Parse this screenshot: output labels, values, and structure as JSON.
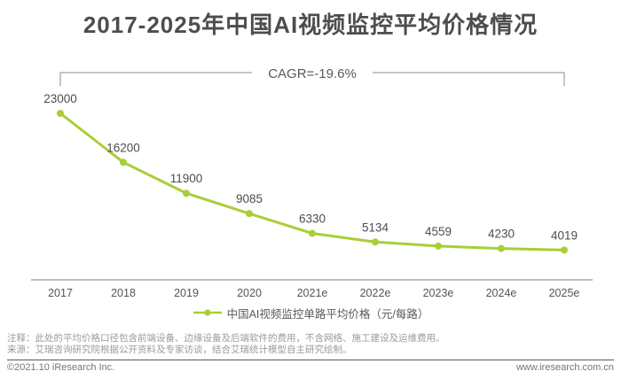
{
  "title": "2017-2025年中国AI视频监控平均价格情况",
  "chart_data": {
    "type": "line",
    "title": "2017-2025年中国AI视频监控平均价格情况",
    "categories": [
      "2017",
      "2018",
      "2019",
      "2020",
      "2021e",
      "2022e",
      "2023e",
      "2024e",
      "2025e"
    ],
    "series": [
      {
        "name": "中国AI视频监控单路平均价格（元/每路）",
        "values": [
          23000,
          16200,
          11900,
          9085,
          6330,
          5134,
          4559,
          4230,
          4019
        ]
      }
    ],
    "data_labels": [
      "23000",
      "16200",
      "11900",
      "9085",
      "6330",
      "5134",
      "4559",
      "4230",
      "4019"
    ],
    "annotation": "CAGR=-19.6%",
    "ylim": [
      0,
      23000
    ],
    "grid": false,
    "legend_position": "bottom",
    "xlabel": "",
    "ylabel": ""
  },
  "legend": {
    "label": "中国AI视频监控单路平均价格（元/每路）"
  },
  "notes": {
    "note1": "注释：此处的平均价格口径包含前端设备、边缘设备及后端软件的费用，不含网络、施工建设及运维费用。",
    "note2": "来源：艾瑞咨询研究院根据公开资料及专家访谈，结合艾瑞统计模型自主研究绘制。"
  },
  "footer": {
    "copyright": "©2021.10 iResearch Inc.",
    "website": "www.iresearch.com.cn"
  },
  "colors": {
    "line_green": "#a8ce38",
    "title_text": "#4d4d4d",
    "value_label_text": "#4d4d4d",
    "axis_line": "#808080",
    "tick_label_text": "#555555",
    "bracket_line": "#8c8c8c",
    "annotation_text": "#595959",
    "note_text": "#9b9b9b",
    "footer_text": "#757575"
  }
}
